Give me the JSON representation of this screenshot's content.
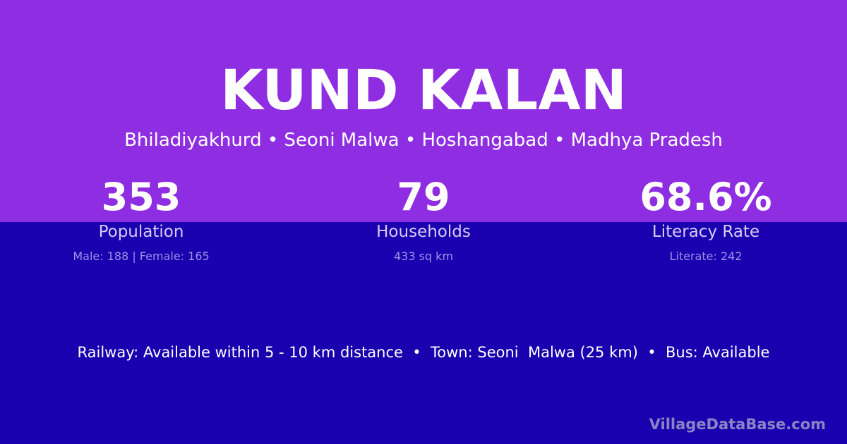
{
  "colors": {
    "header_bg": "#8f2de2",
    "body_bg": "#1a00ae"
  },
  "title": "KUND KALAN",
  "subtitle": "Bhiladiyakhurd • Seoni Malwa • Hoshangabad • Madhya Pradesh",
  "stats": [
    {
      "value": "353",
      "label": "Population",
      "detail": "Male: 188 | Female: 165"
    },
    {
      "value": "79",
      "label": "Households",
      "detail": "433 sq km"
    },
    {
      "value": "68.6%",
      "label": "Literacy Rate",
      "detail": "Literate: 242"
    }
  ],
  "info": "Railway: Available within 5 - 10 km distance  •  Town: Seoni  Malwa (25 km)  •  Bus: Available",
  "brand": "VillageDataBase.com"
}
